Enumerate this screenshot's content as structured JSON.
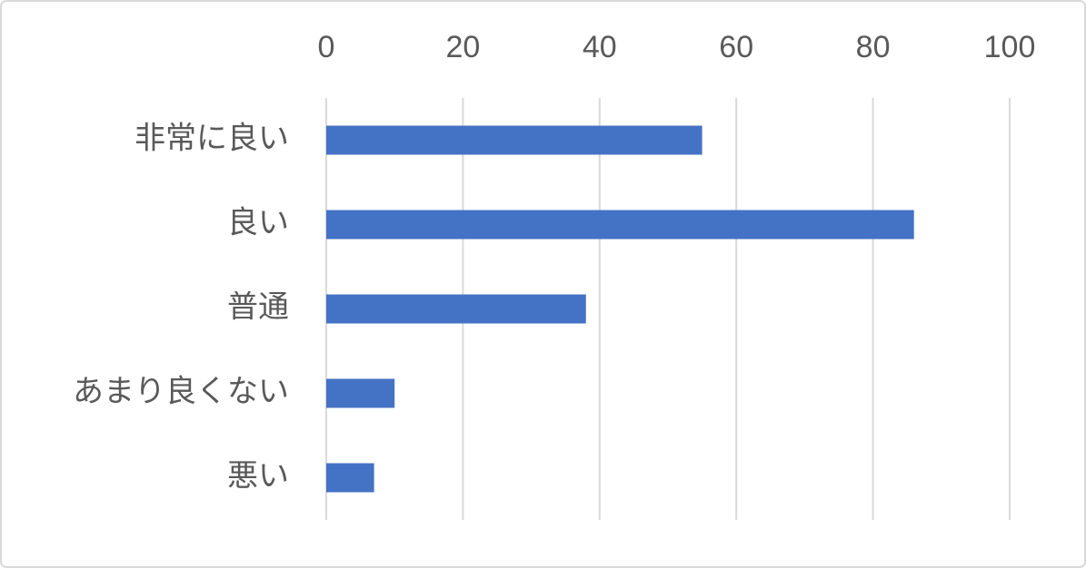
{
  "chart_data": {
    "type": "bar",
    "categories": [
      "非常に良い",
      "良い",
      "普通",
      "あまり良くない",
      "悪い"
    ],
    "values": [
      55,
      86,
      38,
      10,
      7
    ],
    "color": "#4472c4",
    "xlim": [
      0,
      100
    ],
    "xticks": [
      0,
      20,
      40,
      60,
      80,
      100
    ],
    "grid": true
  }
}
